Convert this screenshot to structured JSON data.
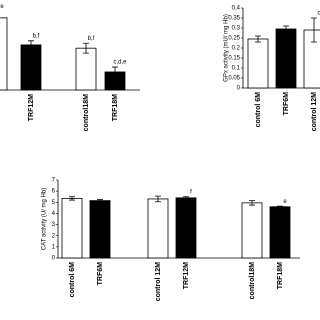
{
  "chart_data": [
    {
      "type": "bar",
      "categories": [
        null,
        "TRF12M",
        "control18M",
        "TRF18M"
      ],
      "values": [
        88,
        55,
        51,
        22
      ],
      "errors": [
        8,
        5,
        6,
        6
      ],
      "colors": [
        "#ffffff",
        "#000000",
        "#ffffff",
        "#000000"
      ],
      "annotations": [
        "e",
        "b,f",
        "b,f",
        "c,d,e"
      ],
      "ylim": [
        0,
        100
      ]
    },
    {
      "type": "bar",
      "y_label": "GPx activity (mU/ mg Hb)",
      "categories": [
        "control 6M",
        "TRF6M",
        "control 12M"
      ],
      "values": [
        0.245,
        0.295,
        0.29
      ],
      "errors": [
        0.015,
        0.015,
        0.06
      ],
      "colors": [
        "#ffffff",
        "#000000",
        "#ffffff"
      ],
      "annotations": [
        null,
        null,
        "c"
      ],
      "ylim": [
        0,
        0.4
      ],
      "yticks": [
        0,
        0.05,
        0.1,
        0.15,
        0.2,
        0.25,
        0.3,
        0.35,
        0.4
      ]
    },
    {
      "type": "bar",
      "y_label": "CAT activity (U/ mg Hb)",
      "categories": [
        "control 6M",
        "TRF6M",
        "control 12M",
        "TRF12M",
        "control18M",
        "TRF18M"
      ],
      "values": [
        5.35,
        5.15,
        5.3,
        5.4,
        4.95,
        4.6
      ],
      "errors": [
        0.15,
        0.1,
        0.25,
        0.1,
        0.2,
        0.05
      ],
      "colors": [
        "#ffffff",
        "#000000",
        "#ffffff",
        "#000000",
        "#ffffff",
        "#000000"
      ],
      "annotations": [
        null,
        null,
        null,
        "f",
        null,
        "e"
      ],
      "ylim": [
        0,
        7
      ],
      "yticks": [
        0,
        1,
        2,
        3,
        4,
        5,
        6,
        7
      ]
    }
  ]
}
